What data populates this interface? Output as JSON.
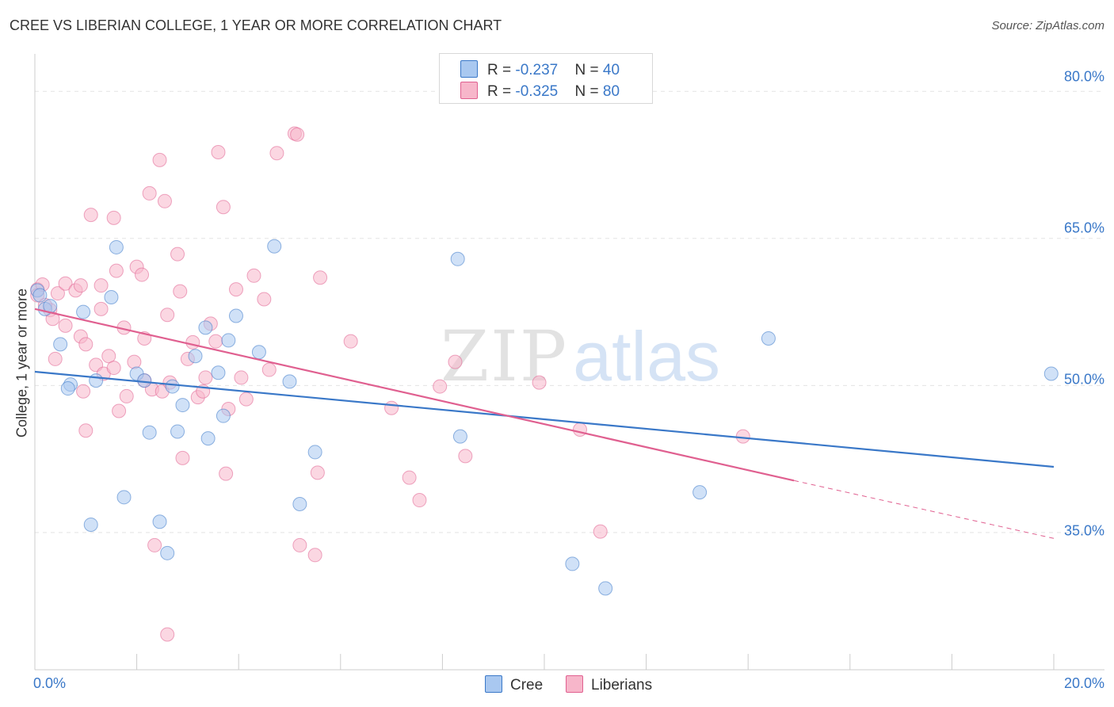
{
  "header": {
    "title": "CREE VS LIBERIAN COLLEGE, 1 YEAR OR MORE CORRELATION CHART",
    "source": "Source: ZipAtlas.com"
  },
  "watermark": {
    "zip": "ZIP",
    "atlas": "atlas"
  },
  "legend": {
    "rows": [
      {
        "r_label": "R = ",
        "r_value": "-0.237",
        "n_label": "N = ",
        "n_value": "40",
        "color": "#a9c8f0"
      },
      {
        "r_label": "R = ",
        "r_value": "-0.325",
        "n_label": "N = ",
        "n_value": "80",
        "color": "#f7b6ca"
      }
    ]
  },
  "bottom_legend": {
    "cree": "Cree",
    "liberians": "Liberians"
  },
  "axis": {
    "ylabel": "College, 1 year or more",
    "y_ticks": [
      "80.0%",
      "65.0%",
      "50.0%",
      "35.0%"
    ],
    "x_ticks": [
      "0.0%",
      "20.0%"
    ]
  },
  "chart_data": {
    "type": "scatter",
    "title": "CREE VS LIBERIAN COLLEGE, 1 YEAR OR MORE CORRELATION CHART",
    "xlabel": "",
    "ylabel": "College, 1 year or more",
    "xlim": [
      0,
      20
    ],
    "ylim": [
      21.0,
      83.5
    ],
    "x_unit": "%",
    "y_unit": "%",
    "y_gridlines": [
      35,
      50,
      65,
      80
    ],
    "grid": true,
    "legend_position": "bottom",
    "colors": {
      "cree": "#3a78c8",
      "cree_fill": "#a9c8f0",
      "liberians": "#e06090",
      "liberians_fill": "#f7b6ca"
    },
    "series": [
      {
        "name": "Cree",
        "r": -0.237,
        "n": 40,
        "trend": {
          "x": [
            0.0,
            20.0
          ],
          "y": [
            51.4,
            41.7
          ]
        },
        "points": [
          [
            0.05,
            59.7
          ],
          [
            0.1,
            59.2
          ],
          [
            0.2,
            57.8
          ],
          [
            0.3,
            58.1
          ],
          [
            0.5,
            54.2
          ],
          [
            0.7,
            50.1
          ],
          [
            1.1,
            35.8
          ],
          [
            1.2,
            50.5
          ],
          [
            0.95,
            57.5
          ],
          [
            1.6,
            64.1
          ],
          [
            1.5,
            59.0
          ],
          [
            1.75,
            38.6
          ],
          [
            2.0,
            51.2
          ],
          [
            2.15,
            50.5
          ],
          [
            2.25,
            45.2
          ],
          [
            2.45,
            36.1
          ],
          [
            2.6,
            32.9
          ],
          [
            2.8,
            45.3
          ],
          [
            2.7,
            49.9
          ],
          [
            2.9,
            48.0
          ],
          [
            3.15,
            53.0
          ],
          [
            3.35,
            55.9
          ],
          [
            3.4,
            44.6
          ],
          [
            3.6,
            51.3
          ],
          [
            3.7,
            46.9
          ],
          [
            3.8,
            54.6
          ],
          [
            3.95,
            57.1
          ],
          [
            4.4,
            53.4
          ],
          [
            4.7,
            64.2
          ],
          [
            5.0,
            50.4
          ],
          [
            5.2,
            37.9
          ],
          [
            5.5,
            43.2
          ],
          [
            0.65,
            49.7
          ],
          [
            8.3,
            62.9
          ],
          [
            8.35,
            44.8
          ],
          [
            10.55,
            31.8
          ],
          [
            11.2,
            29.3
          ],
          [
            13.05,
            39.1
          ],
          [
            14.4,
            54.8
          ],
          [
            19.95,
            51.2
          ]
        ]
      },
      {
        "name": "Liberians",
        "r": -0.325,
        "n": 80,
        "trend": {
          "x": [
            0.0,
            14.9
          ],
          "y": [
            57.8,
            40.3
          ]
        },
        "trend_dashed": {
          "x": [
            14.9,
            20.0
          ],
          "y": [
            40.3,
            34.4
          ]
        },
        "points": [
          [
            0.05,
            59.8
          ],
          [
            0.05,
            59.2
          ],
          [
            0.15,
            60.3
          ],
          [
            0.3,
            57.7
          ],
          [
            0.35,
            56.8
          ],
          [
            0.4,
            52.7
          ],
          [
            0.45,
            59.4
          ],
          [
            0.6,
            60.4
          ],
          [
            0.6,
            56.1
          ],
          [
            0.8,
            59.7
          ],
          [
            0.9,
            60.2
          ],
          [
            0.9,
            55.0
          ],
          [
            0.95,
            49.4
          ],
          [
            1.0,
            45.4
          ],
          [
            1.0,
            54.2
          ],
          [
            1.1,
            67.4
          ],
          [
            1.2,
            52.1
          ],
          [
            1.3,
            60.2
          ],
          [
            1.3,
            57.8
          ],
          [
            1.35,
            51.2
          ],
          [
            1.45,
            53.0
          ],
          [
            1.55,
            67.1
          ],
          [
            1.55,
            51.8
          ],
          [
            1.6,
            61.7
          ],
          [
            1.65,
            47.4
          ],
          [
            1.75,
            55.9
          ],
          [
            1.8,
            48.9
          ],
          [
            1.95,
            52.4
          ],
          [
            2.0,
            62.1
          ],
          [
            2.1,
            61.3
          ],
          [
            2.15,
            54.8
          ],
          [
            2.15,
            50.5
          ],
          [
            2.25,
            69.6
          ],
          [
            2.3,
            49.6
          ],
          [
            2.35,
            33.7
          ],
          [
            2.45,
            73.0
          ],
          [
            2.5,
            49.4
          ],
          [
            2.55,
            68.8
          ],
          [
            2.6,
            57.2
          ],
          [
            2.65,
            50.3
          ],
          [
            2.6,
            24.6
          ],
          [
            2.8,
            63.4
          ],
          [
            2.85,
            59.6
          ],
          [
            2.9,
            42.6
          ],
          [
            3.0,
            52.7
          ],
          [
            3.1,
            54.4
          ],
          [
            3.2,
            48.8
          ],
          [
            3.3,
            49.4
          ],
          [
            3.35,
            50.8
          ],
          [
            3.45,
            56.3
          ],
          [
            3.55,
            54.5
          ],
          [
            3.6,
            73.8
          ],
          [
            3.7,
            68.2
          ],
          [
            3.75,
            41.0
          ],
          [
            3.8,
            47.6
          ],
          [
            3.95,
            59.8
          ],
          [
            4.05,
            50.8
          ],
          [
            4.15,
            48.6
          ],
          [
            4.3,
            61.2
          ],
          [
            4.5,
            58.8
          ],
          [
            4.6,
            51.6
          ],
          [
            4.75,
            73.7
          ],
          [
            5.1,
            75.7
          ],
          [
            5.15,
            75.6
          ],
          [
            5.2,
            33.7
          ],
          [
            5.5,
            32.7
          ],
          [
            5.55,
            41.1
          ],
          [
            5.6,
            61.0
          ],
          [
            6.2,
            54.5
          ],
          [
            7.0,
            47.7
          ],
          [
            7.35,
            40.6
          ],
          [
            7.55,
            38.3
          ],
          [
            7.95,
            49.9
          ],
          [
            8.25,
            52.4
          ],
          [
            8.45,
            42.8
          ],
          [
            9.9,
            50.3
          ],
          [
            10.7,
            45.5
          ],
          [
            11.1,
            35.1
          ],
          [
            13.9,
            44.8
          ],
          [
            0.2,
            58.2
          ]
        ]
      }
    ]
  }
}
